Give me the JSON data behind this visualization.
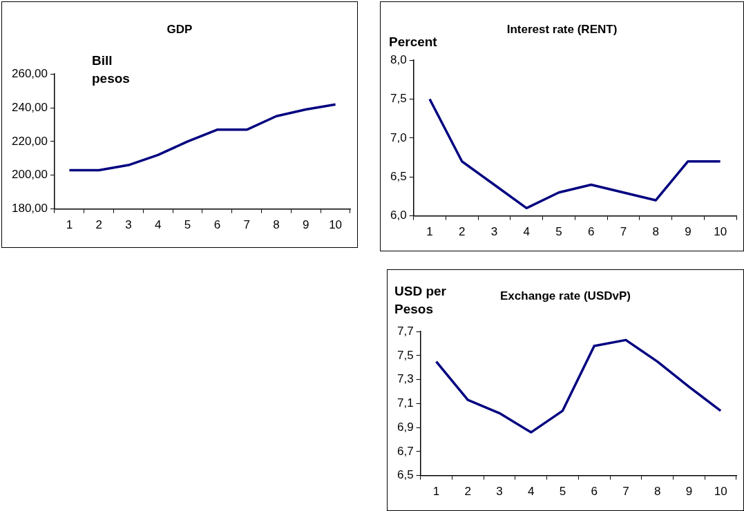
{
  "chart_data": [
    {
      "type": "line",
      "title": "GDP",
      "ylabel": "Bill pesos",
      "categories": [
        "1",
        "2",
        "3",
        "4",
        "5",
        "6",
        "7",
        "8",
        "9",
        "10"
      ],
      "series": [
        {
          "color": "#000080",
          "values": [
            203,
            203,
            206,
            212,
            220,
            227,
            227,
            235,
            239,
            242
          ]
        }
      ],
      "ylim": [
        180,
        260
      ],
      "yticks": [
        {
          "value": 180,
          "label": "180,00"
        },
        {
          "value": 200,
          "label": "200,00"
        },
        {
          "value": 220,
          "label": "220,00"
        },
        {
          "value": 240,
          "label": "240,00"
        },
        {
          "value": 260,
          "label": "260,00"
        }
      ],
      "grid": false,
      "legend": false,
      "marker": "none",
      "line_style": "solid"
    },
    {
      "type": "line",
      "title": "Interest rate (RENT)",
      "ylabel": "Percent",
      "categories": [
        "1",
        "2",
        "3",
        "4",
        "5",
        "6",
        "7",
        "8",
        "9",
        "10"
      ],
      "series": [
        {
          "color": "#000080",
          "values": [
            7.5,
            6.7,
            6.4,
            6.1,
            6.3,
            6.4,
            6.3,
            6.2,
            6.7,
            6.7
          ]
        }
      ],
      "ylim": [
        6,
        8
      ],
      "yticks": [
        {
          "value": 6,
          "label": "6,0"
        },
        {
          "value": 6.5,
          "label": "6,5"
        },
        {
          "value": 7,
          "label": "7,0"
        },
        {
          "value": 7.5,
          "label": "7,5"
        },
        {
          "value": 8,
          "label": "8,0"
        }
      ],
      "grid": false,
      "legend": false,
      "marker": "none",
      "line_style": "solid"
    },
    {
      "type": "line",
      "title": "Exchange rate (USDvP)",
      "ylabel": "USD per Pesos",
      "categories": [
        "1",
        "2",
        "3",
        "4",
        "5",
        "6",
        "7",
        "8",
        "9",
        "10"
      ],
      "series": [
        {
          "color": "#000080",
          "values": [
            7.45,
            7.13,
            7.02,
            6.86,
            7.04,
            7.58,
            7.63,
            7.45,
            7.24,
            7.04
          ]
        }
      ],
      "ylim": [
        6.5,
        7.7
      ],
      "yticks": [
        {
          "value": 6.5,
          "label": "6,5"
        },
        {
          "value": 6.7,
          "label": "6,7"
        },
        {
          "value": 6.9,
          "label": "6,9"
        },
        {
          "value": 7.1,
          "label": "7,1"
        },
        {
          "value": 7.3,
          "label": "7,3"
        },
        {
          "value": 7.5,
          "label": "7,5"
        },
        {
          "value": 7.7,
          "label": "7,7"
        }
      ],
      "grid": false,
      "legend": false,
      "marker": "none",
      "line_style": "solid"
    }
  ]
}
